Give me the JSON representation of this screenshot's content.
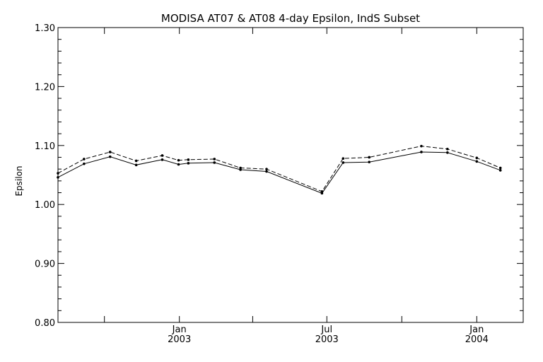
{
  "chart_data": {
    "type": "line",
    "title": "MODISA AT07 & AT08 4-day Epsilon, IndS Subset",
    "xlabel": "",
    "ylabel": "Epsilon",
    "xlim": [
      "2002-08-05",
      "2004-02-27"
    ],
    "ylim": [
      0.8,
      1.3
    ],
    "y_ticks": [
      "0.80",
      "0.90",
      "1.00",
      "1.10",
      "1.20",
      "1.30"
    ],
    "x_tick_labels": [
      {
        "date": "2003-01-01",
        "month": "Jan",
        "year": "2003"
      },
      {
        "date": "2003-07-01",
        "month": "Jul",
        "year": "2003"
      },
      {
        "date": "2004-01-01",
        "month": "Jan",
        "year": "2004"
      }
    ],
    "x_minor_ticks": [
      "2002-10-01",
      "2003-04-01",
      "2003-10-01"
    ],
    "grid": false,
    "series": [
      {
        "style": "solid",
        "color": "#000000",
        "x": [
          "2002-08-05",
          "2002-09-06",
          "2002-10-08",
          "2002-11-09",
          "2002-12-11",
          "2002-12-31",
          "2003-01-12",
          "2003-02-13",
          "2003-03-17",
          "2003-04-18",
          "2003-06-25",
          "2003-07-21",
          "2003-08-22",
          "2003-10-25",
          "2003-11-26",
          "2004-01-01",
          "2004-01-30"
        ],
        "y": [
          1.046,
          1.069,
          1.081,
          1.067,
          1.076,
          1.068,
          1.07,
          1.071,
          1.059,
          1.056,
          1.019,
          1.071,
          1.072,
          1.089,
          1.088,
          1.073,
          1.058
        ]
      },
      {
        "style": "dashed",
        "color": "#000000",
        "x": [
          "2002-08-05",
          "2002-09-06",
          "2002-10-08",
          "2002-11-09",
          "2002-12-11",
          "2002-12-31",
          "2003-01-12",
          "2003-02-13",
          "2003-03-17",
          "2003-04-18",
          "2003-06-25",
          "2003-07-21",
          "2003-08-22",
          "2003-10-25",
          "2003-11-26",
          "2004-01-01",
          "2004-01-30"
        ],
        "y": [
          1.053,
          1.077,
          1.089,
          1.074,
          1.083,
          1.075,
          1.076,
          1.077,
          1.062,
          1.06,
          1.022,
          1.078,
          1.08,
          1.099,
          1.094,
          1.079,
          1.062
        ]
      }
    ]
  }
}
